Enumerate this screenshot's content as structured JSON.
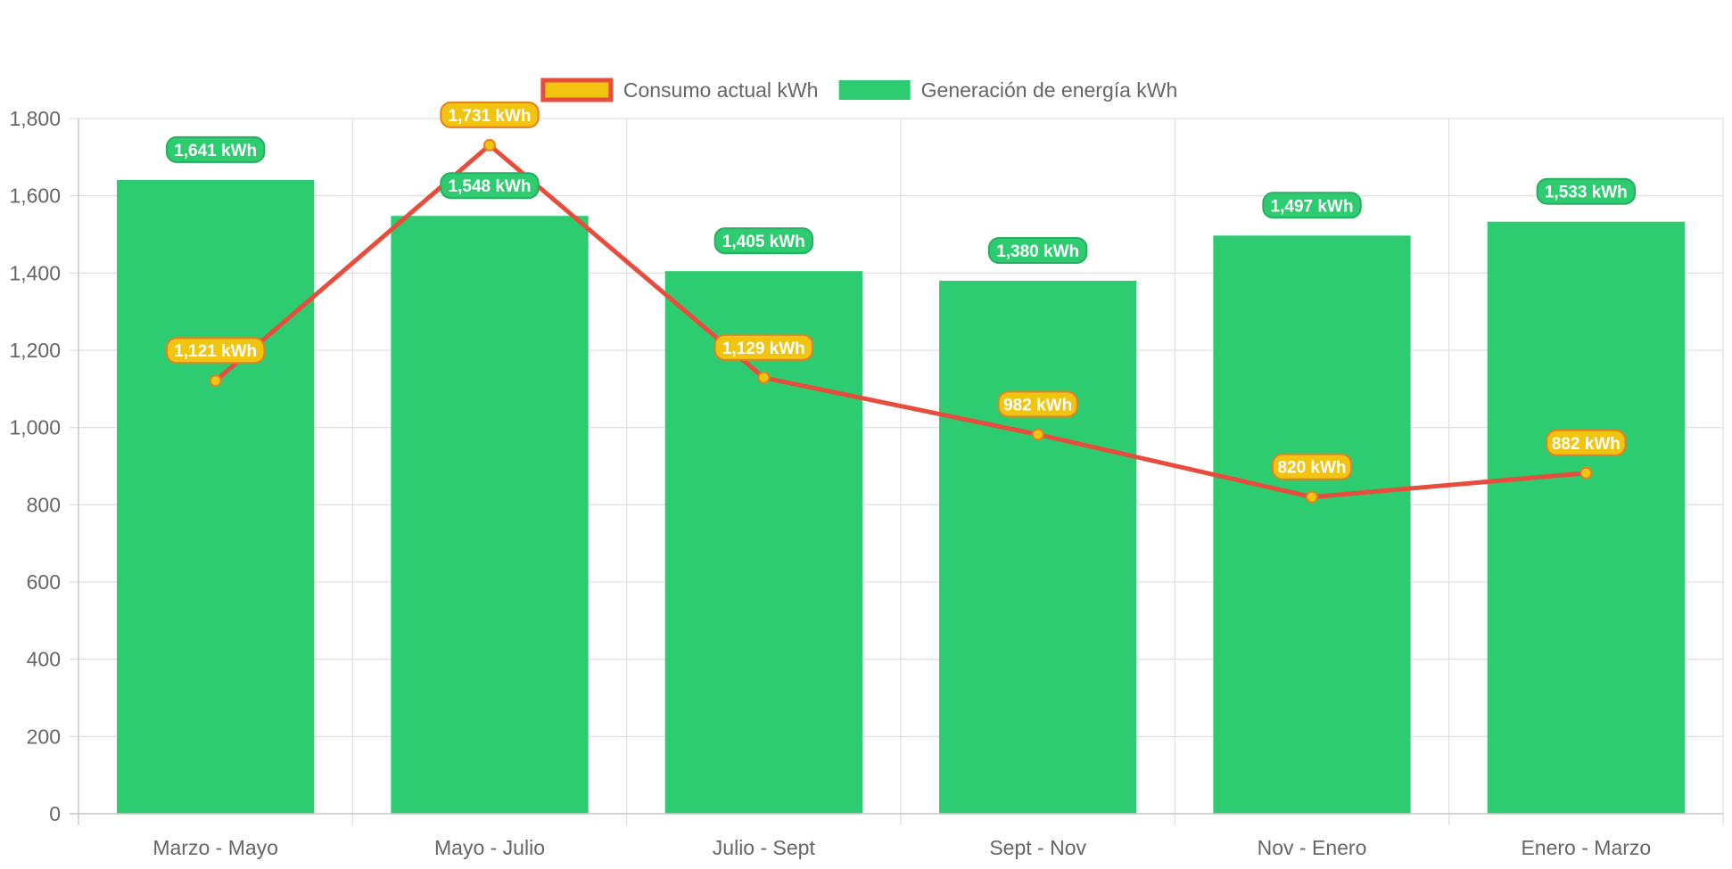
{
  "chart_data": {
    "type": "bar",
    "categories": [
      "Marzo - Mayo",
      "Mayo - Julio",
      "Julio - Sept",
      "Sept - Nov",
      "Nov - Enero",
      "Enero - Marzo"
    ],
    "series": [
      {
        "name": "Generación de energía kWh",
        "type": "bar",
        "values": [
          1641,
          1548,
          1405,
          1380,
          1497,
          1533
        ],
        "labels": [
          "1,641 kWh",
          "1,548 kWh",
          "1,405 kWh",
          "1,380 kWh",
          "1,497 kWh",
          "1,533 kWh"
        ],
        "color": "#2ecc71",
        "label_border_color": "#27ae60"
      },
      {
        "name": "Consumo actual kWh",
        "type": "line",
        "values": [
          1121,
          1731,
          1129,
          982,
          820,
          882
        ],
        "labels": [
          "1,121 kWh",
          "1,731 kWh",
          "1,129 kWh",
          "982 kWh",
          "820 kWh",
          "882 kWh"
        ],
        "color": "#f1c40f",
        "line_color": "#e74c3c",
        "label_border_color": "#e67e22"
      }
    ],
    "yticks": [
      "0",
      "200",
      "400",
      "600",
      "800",
      "1,000",
      "1,200",
      "1,400",
      "1,600",
      "1,800"
    ],
    "ylim": [
      0,
      1800
    ],
    "grid": true,
    "legend_position": "top",
    "title": "",
    "xlabel": "",
    "ylabel": ""
  }
}
